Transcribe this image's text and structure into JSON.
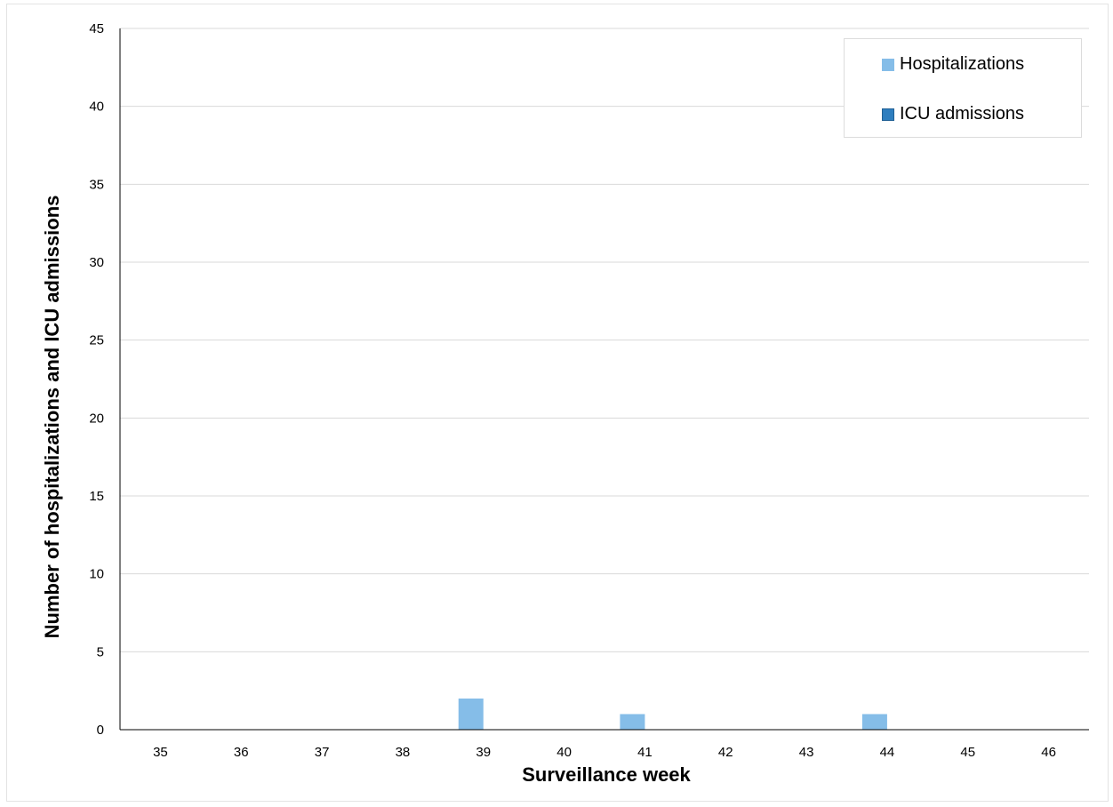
{
  "chart_data": {
    "type": "bar",
    "categories": [
      "35",
      "36",
      "37",
      "38",
      "39",
      "40",
      "41",
      "42",
      "43",
      "44",
      "45",
      "46"
    ],
    "series": [
      {
        "name": "Hospitalizations",
        "values": [
          0,
          0,
          0,
          0,
          2,
          0,
          1,
          0,
          0,
          1,
          0,
          0
        ],
        "color": "#85bde8"
      },
      {
        "name": "ICU admissions",
        "values": [
          0,
          0,
          0,
          0,
          0,
          0,
          0,
          0,
          0,
          0,
          0,
          0
        ],
        "color": "#2e7ebf"
      }
    ],
    "xlabel": "Surveillance week",
    "ylabel": "Number of  hospitalizations and ICU admissions",
    "ylim": [
      0,
      45
    ],
    "yticks": [
      "0",
      "5",
      "10",
      "15",
      "20",
      "25",
      "30",
      "35",
      "40",
      "45"
    ],
    "grid": true,
    "legend": "top-right"
  }
}
